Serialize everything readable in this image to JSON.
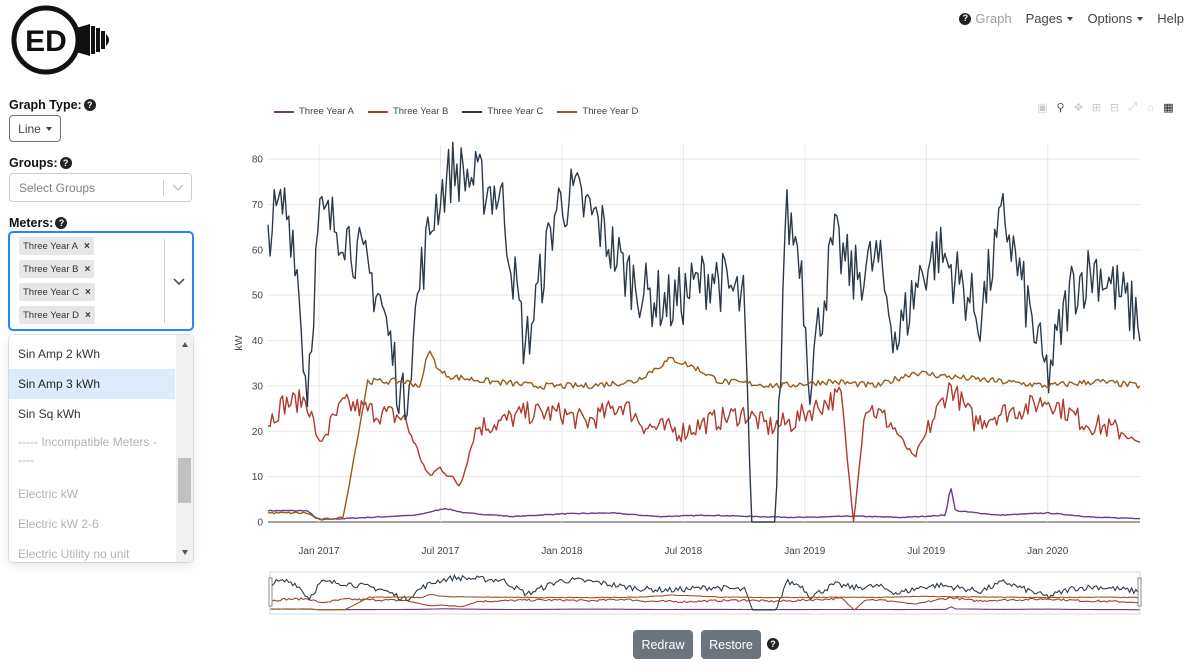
{
  "logo": {
    "text": "ED"
  },
  "nav": {
    "graph": "Graph",
    "pages": "Pages",
    "options": "Options",
    "help": "Help"
  },
  "sidebar": {
    "graph_type_label": "Graph Type:",
    "graph_type_value": "Line",
    "groups_label": "Groups:",
    "groups_placeholder": "Select Groups",
    "meters_label": "Meters:",
    "selected_meters": [
      "Three Year A",
      "Three Year B",
      "Three Year C",
      "Three Year D"
    ],
    "dropdown_options": [
      {
        "label": "Sin Amp 2 kWh",
        "state": "normal"
      },
      {
        "label": "Sin Amp 3 kWh",
        "state": "focused"
      },
      {
        "label": "Sin Sq kWh",
        "state": "normal"
      },
      {
        "label": "----- Incompatible Meters -\n----",
        "state": "disabled"
      },
      {
        "label": "Electric kW",
        "state": "disabled"
      },
      {
        "label": "Electric kW 2-6",
        "state": "disabled"
      },
      {
        "label": "Electric Utility no unit",
        "state": "disabled"
      }
    ]
  },
  "buttons": {
    "redraw": "Redraw",
    "restore": "Restore"
  },
  "modebar_icons": [
    "camera-icon",
    "zoom-icon",
    "pan-icon",
    "zoom-in-icon",
    "zoom-out-icon",
    "autoscale-icon",
    "home-icon",
    "plotly-logo-icon"
  ],
  "chart_data": {
    "type": "line",
    "ylabel": "kW",
    "ylim": [
      0,
      82
    ],
    "yticks": [
      0,
      10,
      20,
      30,
      40,
      50,
      60,
      70,
      80
    ],
    "xrange_months": [
      2016.79,
      2020.38
    ],
    "xticks": [
      {
        "label": "Jan 2017",
        "t": 2017.0
      },
      {
        "label": "Jul 2017",
        "t": 2017.5
      },
      {
        "label": "Jan 2018",
        "t": 2018.0
      },
      {
        "label": "Jul 2018",
        "t": 2018.5
      },
      {
        "label": "Jan 2019",
        "t": 2019.0
      },
      {
        "label": "Jul 2019",
        "t": 2019.5
      },
      {
        "label": "Jan 2020",
        "t": 2020.0
      }
    ],
    "legend_position": "top-left",
    "series": [
      {
        "name": "Three Year A",
        "color": "#6a3d8a",
        "t": [
          2016.79,
          2016.95,
          2017.0,
          2017.2,
          2017.4,
          2017.48,
          2017.52,
          2017.6,
          2017.8,
          2018.0,
          2018.2,
          2018.4,
          2018.6,
          2018.8,
          2019.0,
          2019.2,
          2019.4,
          2019.58,
          2019.6,
          2019.62,
          2019.8,
          2020.0,
          2020.2,
          2020.38
        ],
        "v": [
          2.5,
          2.5,
          0.5,
          1.0,
          1.5,
          2.5,
          3.0,
          2.0,
          1.2,
          1.8,
          2.0,
          1.2,
          1.5,
          1.2,
          1.0,
          1.3,
          1.0,
          1.5,
          8.0,
          2.5,
          1.5,
          2.0,
          1.0,
          0.8
        ]
      },
      {
        "name": "Three Year B",
        "color": "#b03a2e",
        "t": [
          2016.79,
          2016.85,
          2016.95,
          2017.0,
          2017.1,
          2017.25,
          2017.35,
          2017.45,
          2017.5,
          2017.58,
          2017.65,
          2017.75,
          2017.85,
          2018.0,
          2018.1,
          2018.25,
          2018.35,
          2018.5,
          2018.6,
          2018.75,
          2018.85,
          2018.95,
          2019.0,
          2019.15,
          2019.2,
          2019.25,
          2019.35,
          2019.45,
          2019.55,
          2019.6,
          2019.7,
          2019.8,
          2019.9,
          2020.0,
          2020.15,
          2020.3,
          2020.38
        ],
        "v": [
          22,
          26,
          27,
          17,
          26,
          24,
          23,
          10,
          12,
          8,
          21,
          22,
          24,
          24,
          22,
          26,
          21,
          20,
          22,
          24,
          21,
          22,
          24,
          28,
          0,
          26,
          22,
          14,
          25,
          30,
          22,
          24,
          25,
          27,
          22,
          20,
          17
        ]
      },
      {
        "name": "Three Year C",
        "color": "#2b3a4a",
        "t": [
          2016.79,
          2016.86,
          2016.9,
          2016.95,
          2017.0,
          2017.1,
          2017.25,
          2017.35,
          2017.42,
          2017.48,
          2017.55,
          2017.65,
          2017.75,
          2017.85,
          2017.98,
          2018.05,
          2018.15,
          2018.25,
          2018.35,
          2018.45,
          2018.55,
          2018.62,
          2018.75,
          2018.78,
          2018.88,
          2018.92,
          2018.98,
          2019.02,
          2019.12,
          2019.2,
          2019.3,
          2019.38,
          2019.48,
          2019.55,
          2019.65,
          2019.72,
          2019.82,
          2019.88,
          2019.98,
          2020.0,
          2020.1,
          2020.2,
          2020.3,
          2020.38
        ],
        "v": [
          65,
          70,
          62,
          28,
          67,
          65,
          50,
          25,
          55,
          70,
          78,
          75,
          72,
          38,
          70,
          72,
          66,
          56,
          50,
          48,
          52,
          55,
          48,
          0,
          0,
          68,
          60,
          32,
          62,
          54,
          58,
          40,
          55,
          60,
          52,
          45,
          68,
          55,
          35,
          32,
          52,
          56,
          50,
          44
        ]
      },
      {
        "name": "Three Year D",
        "color": "#9a5a1e",
        "t": [
          2016.79,
          2016.95,
          2017.0,
          2017.1,
          2017.2,
          2017.35,
          2017.42,
          2017.45,
          2017.5,
          2017.55,
          2017.7,
          2017.9,
          2018.1,
          2018.3,
          2018.45,
          2018.55,
          2018.65,
          2018.9,
          2019.1,
          2019.3,
          2019.45,
          2019.6,
          2019.8,
          2020.0,
          2020.2,
          2020.38
        ],
        "v": [
          2.0,
          2.0,
          0.5,
          1.0,
          31,
          31,
          30,
          38,
          33,
          32,
          31,
          30,
          30,
          31,
          36,
          34,
          31,
          30,
          31,
          30,
          33,
          32,
          31,
          30,
          31,
          30
        ]
      }
    ]
  }
}
